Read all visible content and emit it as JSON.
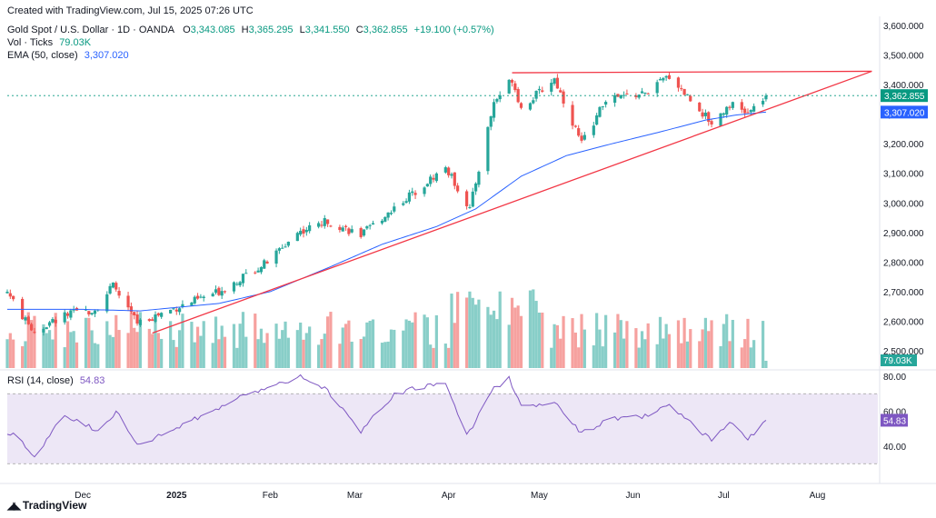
{
  "header": {
    "created": "Created with TradingView.com, Jul 15, 2025 07:26 UTC",
    "symbol": "Gold Spot / U.S. Dollar · 1D · OANDA",
    "open_label": "O",
    "open": "3,343.085",
    "high_label": "H",
    "high": "3,365.295",
    "low_label": "L",
    "low": "3,341.550",
    "close_label": "C",
    "close": "3,362.855",
    "change": "+19.100 (+0.57%)",
    "vol_label": "Vol · Ticks",
    "vol_value": "79.03K",
    "ema_label": "EMA (50, close)",
    "ema_value": "3,307.020",
    "rsi_label": "RSI (14, close)",
    "rsi_value": "54.83"
  },
  "footer": {
    "brand": "TradingView"
  },
  "colors": {
    "up": "#26a69a",
    "down": "#ef5350",
    "ema": "#2962ff",
    "trend": "#f23645",
    "rsi": "#7e57c2",
    "rsi_band": "#ede7f6"
  },
  "chart_data": {
    "type": "candlestick",
    "price_axis": {
      "min": 2450,
      "max": 3600,
      "ticks": [
        "3,600.000",
        "3,500.000",
        "3,400.000",
        "3,300.000",
        "3,200.000",
        "3,100.000",
        "3,000.000",
        "2,900.000",
        "2,800.000",
        "2,700.000",
        "2,600.000",
        "2,500.000"
      ],
      "tick_values": [
        3600,
        3500,
        3400,
        3300,
        3200,
        3100,
        3000,
        2900,
        2800,
        2700,
        2600,
        2500
      ]
    },
    "time_axis": {
      "labels": [
        "Dec",
        "2025",
        "Feb",
        "Mar",
        "Apr",
        "May",
        "Jun",
        "Jul",
        "Aug"
      ],
      "label_dates": [
        "2024-12-01",
        "2025-01-01",
        "2025-02-01",
        "2025-03-01",
        "2025-04-01",
        "2025-05-01",
        "2025-06-01",
        "2025-07-01",
        "2025-08-01"
      ]
    },
    "date_range": {
      "start": "2024-11-06",
      "end": "2025-08-21"
    },
    "last_date": "2025-07-15",
    "price_badges": [
      {
        "label": "3,362.855",
        "value": 3362.855,
        "color": "#089981"
      },
      {
        "label": "3,307.020",
        "value": 3307.02,
        "color": "#2962ff"
      }
    ],
    "volume_badge": {
      "label": "79.03K",
      "color": "#26a69a"
    },
    "ema_anchors": [
      {
        "d": "2024-11-06",
        "v": 2640
      },
      {
        "d": "2024-12-01",
        "v": 2640
      },
      {
        "d": "2024-12-20",
        "v": 2635
      },
      {
        "d": "2025-01-15",
        "v": 2660
      },
      {
        "d": "2025-02-01",
        "v": 2700
      },
      {
        "d": "2025-02-20",
        "v": 2780
      },
      {
        "d": "2025-03-10",
        "v": 2860
      },
      {
        "d": "2025-03-28",
        "v": 2920
      },
      {
        "d": "2025-04-10",
        "v": 2980
      },
      {
        "d": "2025-04-25",
        "v": 3090
      },
      {
        "d": "2025-05-10",
        "v": 3160
      },
      {
        "d": "2025-05-25",
        "v": 3200
      },
      {
        "d": "2025-06-10",
        "v": 3240
      },
      {
        "d": "2025-06-25",
        "v": 3280
      },
      {
        "d": "2025-07-05",
        "v": 3297
      },
      {
        "d": "2025-07-15",
        "v": 3307
      }
    ],
    "close_anchors": [
      {
        "d": "2024-11-06",
        "v": 2700
      },
      {
        "d": "2024-11-12",
        "v": 2600
      },
      {
        "d": "2024-11-15",
        "v": 2565
      },
      {
        "d": "2024-11-25",
        "v": 2620
      },
      {
        "d": "2024-12-05",
        "v": 2640
      },
      {
        "d": "2024-12-11",
        "v": 2720
      },
      {
        "d": "2024-12-19",
        "v": 2595
      },
      {
        "d": "2025-01-02",
        "v": 2650
      },
      {
        "d": "2025-01-15",
        "v": 2700
      },
      {
        "d": "2025-01-31",
        "v": 2800
      },
      {
        "d": "2025-02-10",
        "v": 2900
      },
      {
        "d": "2025-02-20",
        "v": 2940
      },
      {
        "d": "2025-03-03",
        "v": 2890
      },
      {
        "d": "2025-03-14",
        "v": 2985
      },
      {
        "d": "2025-03-31",
        "v": 3120
      },
      {
        "d": "2025-04-08",
        "v": 2980
      },
      {
        "d": "2025-04-16",
        "v": 3340
      },
      {
        "d": "2025-04-22",
        "v": 3420
      },
      {
        "d": "2025-04-25",
        "v": 3320
      },
      {
        "d": "2025-05-06",
        "v": 3420
      },
      {
        "d": "2025-05-15",
        "v": 3200
      },
      {
        "d": "2025-05-23",
        "v": 3350
      },
      {
        "d": "2025-06-05",
        "v": 3370
      },
      {
        "d": "2025-06-13",
        "v": 3430
      },
      {
        "d": "2025-06-27",
        "v": 3270
      },
      {
        "d": "2025-07-03",
        "v": 3335
      },
      {
        "d": "2025-07-09",
        "v": 3300
      },
      {
        "d": "2025-07-15",
        "v": 3362
      }
    ],
    "trendlines": [
      {
        "from": {
          "d": "2024-12-24",
          "v": 2560
        },
        "to": {
          "d": "2025-08-19",
          "v": 3445
        }
      },
      {
        "from": {
          "d": "2025-04-22",
          "v": 3440
        },
        "to": {
          "d": "2025-08-19",
          "v": 3445
        }
      }
    ],
    "rsi_axis": {
      "ticks": [
        "80.00",
        "60.00",
        "40.00"
      ],
      "tick_values": [
        80,
        60,
        40
      ],
      "band": [
        30,
        70
      ]
    },
    "rsi_anchors": [
      {
        "d": "2024-11-08",
        "v": 47
      },
      {
        "d": "2024-11-15",
        "v": 34
      },
      {
        "d": "2024-11-25",
        "v": 58
      },
      {
        "d": "2024-12-06",
        "v": 49
      },
      {
        "d": "2024-12-12",
        "v": 60
      },
      {
        "d": "2024-12-19",
        "v": 40
      },
      {
        "d": "2025-01-03",
        "v": 52
      },
      {
        "d": "2025-01-17",
        "v": 64
      },
      {
        "d": "2025-01-31",
        "v": 74
      },
      {
        "d": "2025-02-11",
        "v": 80
      },
      {
        "d": "2025-02-20",
        "v": 72
      },
      {
        "d": "2025-03-03",
        "v": 48
      },
      {
        "d": "2025-03-14",
        "v": 70
      },
      {
        "d": "2025-03-31",
        "v": 77
      },
      {
        "d": "2025-04-07",
        "v": 46
      },
      {
        "d": "2025-04-16",
        "v": 73
      },
      {
        "d": "2025-04-21",
        "v": 79
      },
      {
        "d": "2025-04-25",
        "v": 63
      },
      {
        "d": "2025-05-06",
        "v": 65
      },
      {
        "d": "2025-05-15",
        "v": 47
      },
      {
        "d": "2025-05-23",
        "v": 55
      },
      {
        "d": "2025-06-05",
        "v": 57
      },
      {
        "d": "2025-06-13",
        "v": 63
      },
      {
        "d": "2025-06-27",
        "v": 43
      },
      {
        "d": "2025-07-03",
        "v": 53
      },
      {
        "d": "2025-07-09",
        "v": 44
      },
      {
        "d": "2025-07-15",
        "v": 54.83
      }
    ]
  }
}
